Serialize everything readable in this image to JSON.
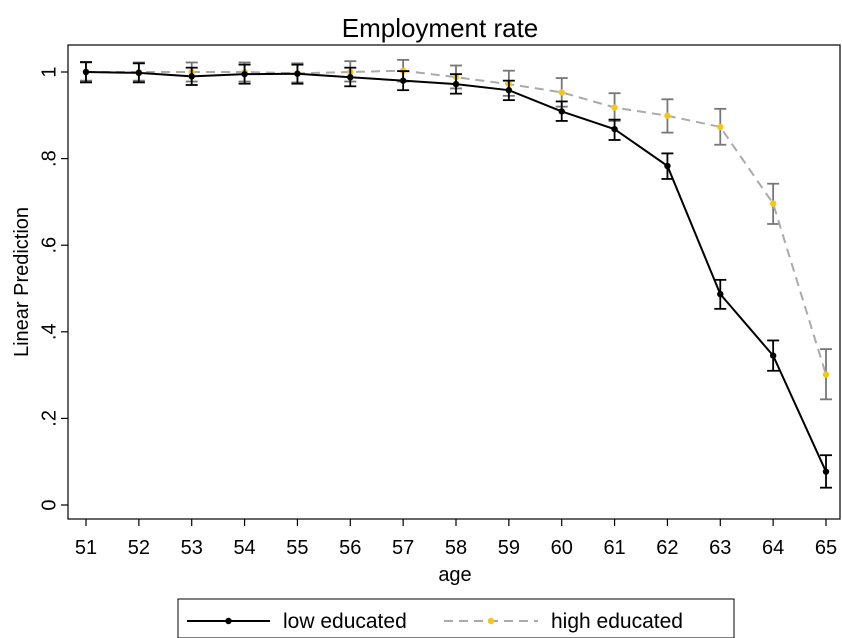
{
  "chart_data": {
    "type": "line",
    "title": "Employment rate",
    "xlabel": "age",
    "ylabel": "Linear Prediction",
    "xlim": [
      51,
      65
    ],
    "ylim": [
      0,
      1
    ],
    "x": [
      51,
      52,
      53,
      54,
      55,
      56,
      57,
      58,
      59,
      60,
      61,
      62,
      63,
      64,
      65
    ],
    "y_ticks": [
      {
        "value": 0,
        "label": "0"
      },
      {
        "value": 0.2,
        "label": ".2"
      },
      {
        "value": 0.4,
        "label": ".4"
      },
      {
        "value": 0.6,
        "label": ".6"
      },
      {
        "value": 0.8,
        "label": ".8"
      },
      {
        "value": 1,
        "label": "1"
      }
    ],
    "x_ticks": [
      "51",
      "52",
      "53",
      "54",
      "55",
      "56",
      "57",
      "58",
      "59",
      "60",
      "61",
      "62",
      "63",
      "64",
      "65"
    ],
    "grid": false,
    "legend_position": "bottom",
    "series": [
      {
        "name": "low educated",
        "color": "#000000",
        "marker_color": "#000000",
        "errorbar_color": "#000000",
        "line_style": "solid",
        "values": [
          1.0,
          0.998,
          0.99,
          0.995,
          0.996,
          0.988,
          0.98,
          0.972,
          0.958,
          0.909,
          0.868,
          0.783,
          0.487,
          0.345,
          0.077
        ],
        "lower": [
          0.976,
          0.976,
          0.97,
          0.973,
          0.973,
          0.967,
          0.958,
          0.95,
          0.935,
          0.887,
          0.843,
          0.753,
          0.453,
          0.31,
          0.04
        ],
        "upper": [
          1.023,
          1.02,
          1.01,
          1.017,
          1.017,
          1.01,
          1.002,
          0.995,
          0.98,
          0.932,
          0.89,
          0.812,
          0.52,
          0.38,
          0.115
        ]
      },
      {
        "name": "high educated",
        "color": "#aaaaaa",
        "marker_color": "#f5c518",
        "errorbar_color": "#777777",
        "line_style": "dashed",
        "values": [
          1.0,
          1.0,
          1.0,
          1.0,
          0.997,
          1.0,
          1.003,
          0.988,
          0.972,
          0.953,
          0.918,
          0.899,
          0.873,
          0.696,
          0.301
        ],
        "lower": [
          0.98,
          0.98,
          0.978,
          0.978,
          0.976,
          0.978,
          0.978,
          0.962,
          0.945,
          0.92,
          0.887,
          0.86,
          0.832,
          0.649,
          0.244
        ],
        "upper": [
          1.022,
          1.022,
          1.022,
          1.022,
          1.02,
          1.025,
          1.028,
          1.015,
          1.003,
          0.986,
          0.951,
          0.937,
          0.915,
          0.742,
          0.36
        ]
      }
    ]
  }
}
